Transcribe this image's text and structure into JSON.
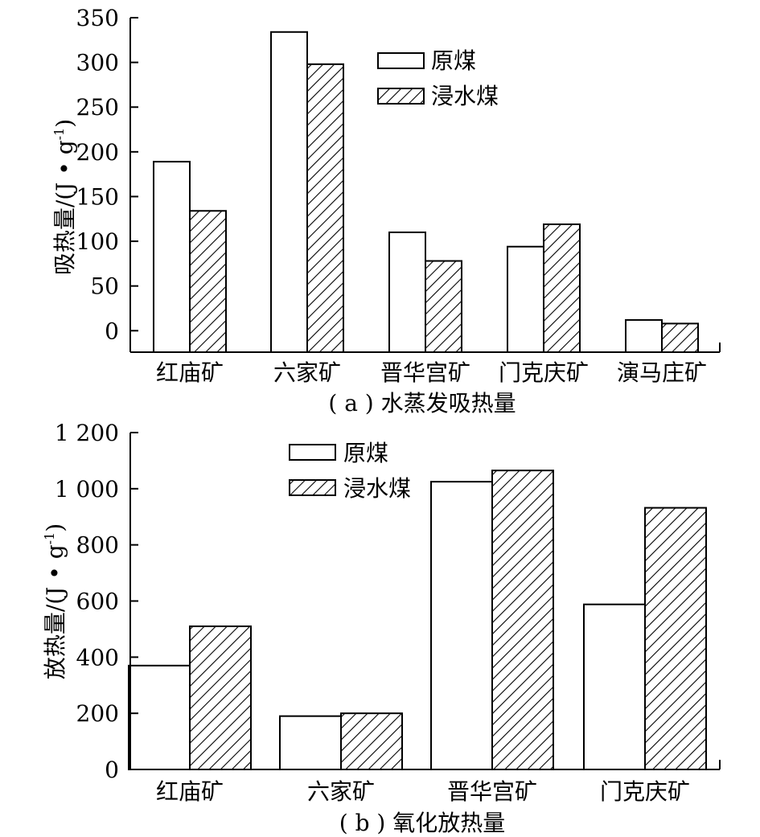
{
  "chart_data": [
    {
      "type": "bar",
      "title": "( a ) 水蒸发吸热量",
      "ylabel_main": "吸热量/(J • g",
      "ylabel_sup": "-1",
      "ylabel_close": ")",
      "xlabel": "",
      "categories": [
        "红庙矿",
        "六家矿",
        "晋华宫矿",
        "门克庆矿",
        "演马庄矿"
      ],
      "series": [
        {
          "name": "原煤",
          "values": [
            189,
            334,
            110,
            94,
            12
          ]
        },
        {
          "name": "浸水煤",
          "values": [
            134,
            298,
            78,
            119,
            8
          ]
        }
      ],
      "ylim": [
        -24,
        350
      ],
      "yticks": [
        0,
        50,
        100,
        150,
        200,
        250,
        300,
        350
      ],
      "ytick_labels": [
        "0",
        "50",
        "100",
        "150",
        "200",
        "250",
        "300",
        "350"
      ],
      "legend": "top-right",
      "grid": false
    },
    {
      "type": "bar",
      "title": "( b ) 氧化放热量",
      "ylabel_main": "放热量/(J • g",
      "ylabel_sup": "-1",
      "ylabel_close": ")",
      "xlabel": "",
      "categories": [
        "红庙矿",
        "六家矿",
        "晋华宫矿",
        "门克庆矿"
      ],
      "series": [
        {
          "name": "原煤",
          "values": [
            370,
            190,
            1025,
            588
          ]
        },
        {
          "name": "浸水煤",
          "values": [
            510,
            200,
            1065,
            932
          ]
        }
      ],
      "ylim": [
        0,
        1200
      ],
      "yticks": [
        0,
        200,
        400,
        600,
        800,
        1000,
        1200
      ],
      "ytick_labels": [
        "0",
        "200",
        "400",
        "600",
        "800",
        "1 000",
        "1 200"
      ],
      "legend": "top-center",
      "grid": false
    }
  ]
}
